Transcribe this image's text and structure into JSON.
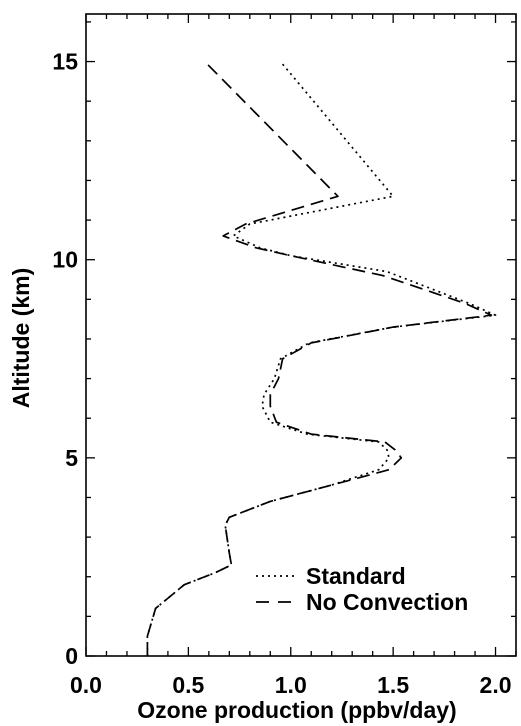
{
  "chart_data": {
    "type": "line",
    "title": "",
    "xlabel": "Ozone production (ppbv/day)",
    "ylabel": "Altitude (km)",
    "xlim": [
      0.0,
      2.1
    ],
    "ylim": [
      0,
      16.2
    ],
    "x_ticks": [
      "0.0",
      "0.5",
      "1.0",
      "1.5",
      "2.0"
    ],
    "x_tick_values": [
      0.0,
      0.5,
      1.0,
      1.5,
      2.0
    ],
    "y_ticks": [
      "0",
      "5",
      "10",
      "15"
    ],
    "y_tick_values": [
      0,
      5,
      10,
      15
    ],
    "grid": false,
    "legend_position": "bottom-right",
    "series": [
      {
        "name": "Standard",
        "style": "dotted",
        "color": "#000000",
        "points": [
          [
            0.3,
            0.0
          ],
          [
            0.3,
            0.5
          ],
          [
            0.34,
            1.2
          ],
          [
            0.48,
            1.8
          ],
          [
            0.63,
            2.1
          ],
          [
            0.71,
            2.3
          ],
          [
            0.7,
            2.6
          ],
          [
            0.68,
            3.3
          ],
          [
            0.7,
            3.5
          ],
          [
            0.9,
            3.9
          ],
          [
            1.19,
            4.3
          ],
          [
            1.43,
            4.7
          ],
          [
            1.48,
            5.0
          ],
          [
            1.47,
            5.2
          ],
          [
            1.43,
            5.4
          ],
          [
            1.08,
            5.6
          ],
          [
            0.9,
            5.9
          ],
          [
            0.86,
            6.3
          ],
          [
            0.87,
            6.6
          ],
          [
            0.92,
            7.0
          ],
          [
            0.95,
            7.5
          ],
          [
            1.09,
            7.9
          ],
          [
            1.5,
            8.3
          ],
          [
            2.0,
            8.6
          ],
          [
            1.87,
            8.9
          ],
          [
            1.47,
            9.7
          ],
          [
            1.0,
            10.1
          ],
          [
            0.85,
            10.3
          ],
          [
            0.72,
            10.6
          ],
          [
            0.8,
            10.9
          ],
          [
            1.5,
            11.6
          ],
          [
            0.95,
            15.0
          ]
        ]
      },
      {
        "name": "No Convection",
        "style": "dashed",
        "color": "#000000",
        "points": [
          [
            0.3,
            0.0
          ],
          [
            0.3,
            0.5
          ],
          [
            0.34,
            1.2
          ],
          [
            0.48,
            1.8
          ],
          [
            0.63,
            2.1
          ],
          [
            0.71,
            2.3
          ],
          [
            0.7,
            2.6
          ],
          [
            0.68,
            3.3
          ],
          [
            0.7,
            3.5
          ],
          [
            0.9,
            3.9
          ],
          [
            1.19,
            4.3
          ],
          [
            1.48,
            4.7
          ],
          [
            1.54,
            5.0
          ],
          [
            1.51,
            5.2
          ],
          [
            1.46,
            5.4
          ],
          [
            1.1,
            5.6
          ],
          [
            0.93,
            5.9
          ],
          [
            0.9,
            6.3
          ],
          [
            0.9,
            6.6
          ],
          [
            0.94,
            7.0
          ],
          [
            0.96,
            7.5
          ],
          [
            1.1,
            7.9
          ],
          [
            1.5,
            8.3
          ],
          [
            1.98,
            8.6
          ],
          [
            1.85,
            8.9
          ],
          [
            1.45,
            9.6
          ],
          [
            1.0,
            10.1
          ],
          [
            0.83,
            10.3
          ],
          [
            0.67,
            10.6
          ],
          [
            0.78,
            10.9
          ],
          [
            1.23,
            11.6
          ],
          [
            0.58,
            15.0
          ]
        ]
      }
    ]
  }
}
